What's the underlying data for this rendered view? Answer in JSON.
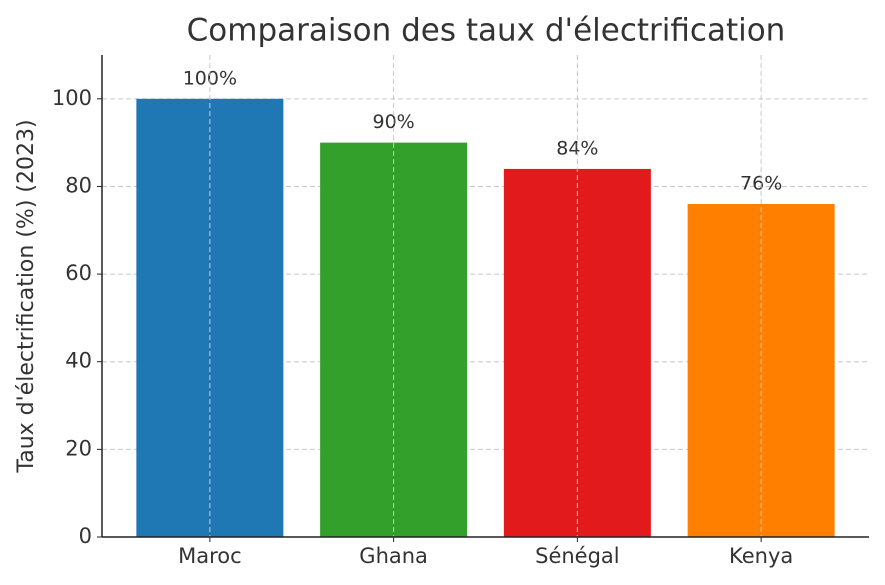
{
  "chart_data": {
    "type": "bar",
    "title": "Comparaison des taux d'électrification",
    "y_label": "Taux d'électrification (%) (2023)",
    "categories": [
      "Maroc",
      "Ghana",
      "Sénégal",
      "Kenya"
    ],
    "values": [
      100,
      90,
      84,
      76
    ],
    "value_labels": [
      "100%",
      "90%",
      "84%",
      "76%"
    ],
    "colors": [
      "#1f77b4",
      "#33a02c",
      "#e31a1c",
      "#ff7f00"
    ],
    "ylim": [
      0,
      110
    ],
    "yticks": [
      0,
      20,
      40,
      60,
      80,
      100
    ],
    "grid": true
  }
}
